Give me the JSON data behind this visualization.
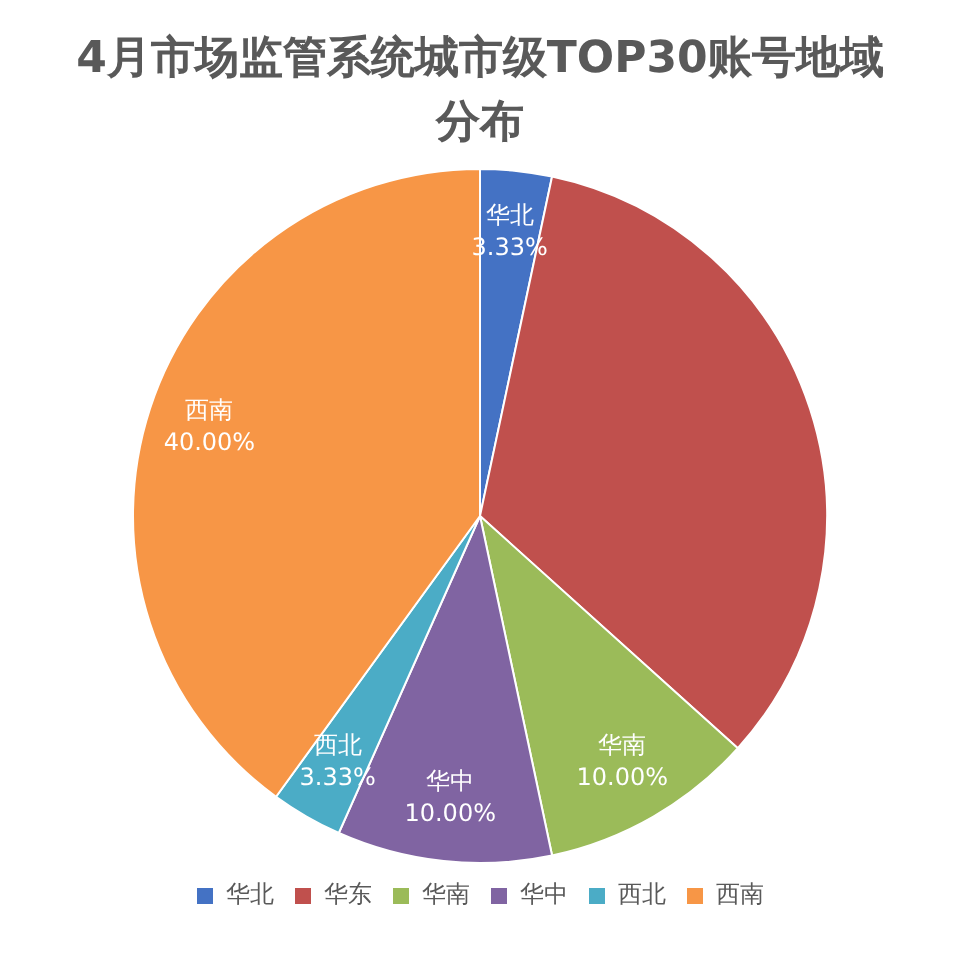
{
  "chart_data": {
    "type": "pie",
    "title": "4月市场监管系统城市级TOP30账号地域分布",
    "categories": [
      "华北",
      "华东",
      "华南",
      "华中",
      "西北",
      "西南"
    ],
    "values": [
      3.33,
      33.34,
      10,
      10,
      3.33,
      40
    ],
    "colors": [
      "#4472c4",
      "#c0504d",
      "#9bbb59",
      "#8064a2",
      "#4bacc6",
      "#f79646"
    ],
    "value_labels": [
      "3.33%",
      null,
      "10.00%",
      "10.00%",
      "3.33%",
      "40.00%"
    ],
    "legend": "bottom"
  }
}
